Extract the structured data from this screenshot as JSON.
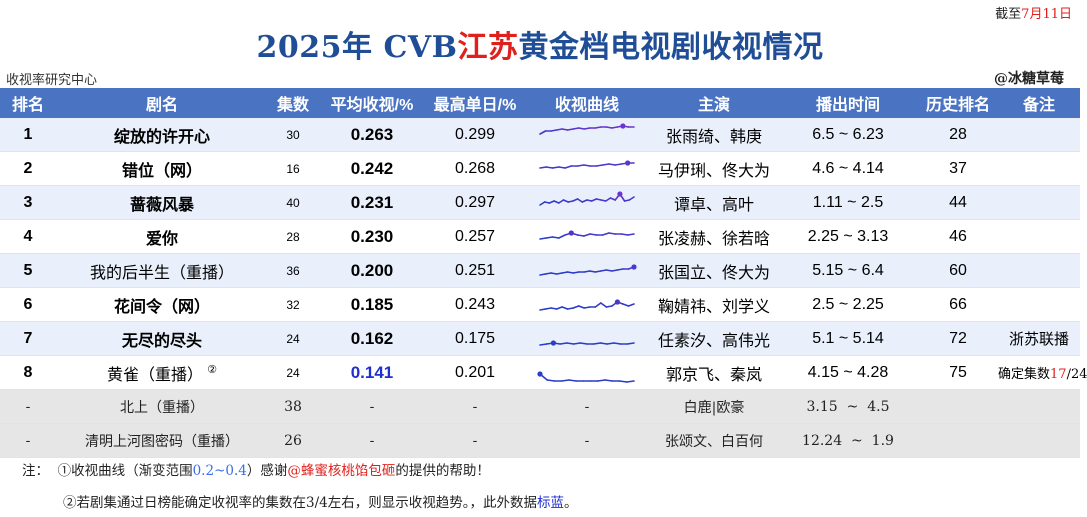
{
  "cutoff": {
    "prefix": "截至",
    "date": "7月11日"
  },
  "title": {
    "year": "2025年 CVB",
    "region": "江苏",
    "rest": "黄金档电视剧收视情况"
  },
  "org": "收视率研究中心",
  "brand": "@冰糖草莓",
  "headers": [
    "排名",
    "剧名",
    "集数",
    "平均收视/%",
    "最高单日/%",
    "收视曲线",
    "主演",
    "播出时间",
    "历史排名",
    "备注"
  ],
  "colors": {
    "header_bg": "#4a74c2",
    "title_blue": "#1f4e96",
    "accent_red": "#e0201c",
    "line_blue": "#2a3cc8",
    "line_purple": "#b02ad8",
    "low_blue": "#1f2fd0"
  },
  "rows": [
    {
      "rank": "1",
      "name": "绽放的许开心",
      "eps": "30",
      "avg": "0.263",
      "peak": "0.299",
      "cast": "张雨绮、韩庚",
      "air_from": "6.5",
      "air_to": "6.23",
      "hist": "28",
      "note": ""
    },
    {
      "rank": "2",
      "name": "错位（网）",
      "eps": "16",
      "avg": "0.242",
      "peak": "0.268",
      "cast": "马伊琍、佟大为",
      "air_from": "4.6",
      "air_to": "4.14",
      "hist": "37",
      "note": ""
    },
    {
      "rank": "3",
      "name": "蔷薇风暴",
      "eps": "40",
      "avg": "0.231",
      "peak": "0.297",
      "cast": "谭卓、高叶",
      "air_from": "1.11",
      "air_to": "2.5",
      "hist": "44",
      "note": ""
    },
    {
      "rank": "4",
      "name": "爱你",
      "eps": "28",
      "avg": "0.230",
      "peak": "0.257",
      "cast": "张凌赫、徐若晗",
      "air_from": "2.25",
      "air_to": "3.13",
      "hist": "46",
      "note": ""
    },
    {
      "rank": "5",
      "name": "我的后半生（重播）",
      "eps": "36",
      "avg": "0.200",
      "peak": "0.251",
      "cast": "张国立、佟大为",
      "air_from": "5.15",
      "air_to": "6.4",
      "hist": "60",
      "note": ""
    },
    {
      "rank": "6",
      "name": "花间令（网）",
      "eps": "32",
      "avg": "0.185",
      "peak": "0.243",
      "cast": "鞠婧祎、刘学义",
      "air_from": "2.5",
      "air_to": "2.25",
      "hist": "66",
      "note": ""
    },
    {
      "rank": "7",
      "name": "无尽的尽头",
      "eps": "24",
      "avg": "0.162",
      "peak": "0.175",
      "cast": "任素汐、高伟光",
      "air_from": "5.1",
      "air_to": "5.14",
      "hist": "72",
      "note": "浙苏联播"
    },
    {
      "rank": "8",
      "name": "黄雀（重播）",
      "name_mark": "②",
      "eps": "24",
      "avg": "0.141",
      "peak": "0.201",
      "cast": "郭京飞、秦岚",
      "air_from": "4.15",
      "air_to": "4.28",
      "hist": "75",
      "note_pre": "确定集数",
      "note_num": "17",
      "note_post": "/24"
    }
  ],
  "extra_rows": [
    {
      "rank": "-",
      "name": "北上（重播）",
      "eps": "38",
      "avg": "-",
      "peak": "-",
      "curve": "-",
      "cast": "白鹿|欧豪",
      "air_from": "3.15",
      "air_to": "4.5"
    },
    {
      "rank": "-",
      "name": "清明上河图密码（重播）",
      "eps": "26",
      "avg": "-",
      "peak": "-",
      "curve": "-",
      "cast": "张颂文、白百何",
      "air_from": "12.24",
      "air_to": "1.9"
    }
  ],
  "footer": {
    "label": "注：",
    "line1_a": "①收视曲线（渐变范围",
    "line1_range": "0.2~0.4",
    "line1_b": "）感谢",
    "line1_credit": "@蜂蜜核桃馅包砸",
    "line1_c": "的提供的帮助！",
    "line2_a": "②若剧集通过日榜能确定收视率的集数在3/4左右，",
    "line2_b": "则显示收视趋势。",
    "line2_c": "，此外数据",
    "line2_blue": "标蓝",
    "line2_end": "。"
  },
  "chart_data": {
    "type": "line",
    "title": "收视曲线",
    "ylim": [
      0.1,
      0.32
    ],
    "color_range": [
      0.2,
      0.4
    ],
    "series": [
      {
        "name": "绽放的许开心",
        "values": [
          0.22,
          0.25,
          0.25,
          0.26,
          0.27,
          0.26,
          0.27,
          0.28,
          0.27,
          0.28,
          0.28,
          0.29,
          0.29,
          0.28,
          0.29,
          0.3,
          0.29,
          0.29
        ]
      },
      {
        "name": "错位（网）",
        "values": [
          0.22,
          0.23,
          0.22,
          0.23,
          0.22,
          0.24,
          0.24,
          0.25,
          0.24,
          0.24,
          0.25,
          0.26,
          0.25,
          0.26,
          0.27,
          0.27
        ]
      },
      {
        "name": "蔷薇风暴",
        "values": [
          0.19,
          0.22,
          0.21,
          0.23,
          0.21,
          0.24,
          0.22,
          0.23,
          0.25,
          0.22,
          0.24,
          0.23,
          0.25,
          0.24,
          0.23,
          0.26,
          0.24,
          0.3,
          0.23,
          0.24,
          0.27
        ]
      },
      {
        "name": "爱你",
        "values": [
          0.19,
          0.2,
          0.21,
          0.2,
          0.23,
          0.25,
          0.23,
          0.22,
          0.24,
          0.23,
          0.23,
          0.25,
          0.24,
          0.24,
          0.23,
          0.24
        ]
      },
      {
        "name": "我的后半生（重播）",
        "values": [
          0.17,
          0.18,
          0.19,
          0.18,
          0.19,
          0.2,
          0.19,
          0.2,
          0.2,
          0.21,
          0.2,
          0.21,
          0.22,
          0.21,
          0.22,
          0.23,
          0.23,
          0.25
        ]
      },
      {
        "name": "花间令（网）",
        "values": [
          0.16,
          0.17,
          0.18,
          0.17,
          0.19,
          0.17,
          0.18,
          0.2,
          0.18,
          0.19,
          0.19,
          0.23,
          0.19,
          0.2,
          0.24,
          0.22,
          0.2,
          0.22
        ]
      },
      {
        "name": "无尽的尽头",
        "values": [
          0.15,
          0.16,
          0.17,
          0.16,
          0.17,
          0.16,
          0.17,
          0.16,
          0.16,
          0.17,
          0.16,
          0.17,
          0.16,
          0.16,
          0.17
        ]
      },
      {
        "name": "黄雀（重播）",
        "values": [
          0.2,
          0.14,
          0.13,
          0.13,
          0.14,
          0.13,
          0.13,
          0.13,
          0.13,
          0.14,
          0.13,
          0.13,
          0.12,
          0.13
        ]
      }
    ]
  }
}
